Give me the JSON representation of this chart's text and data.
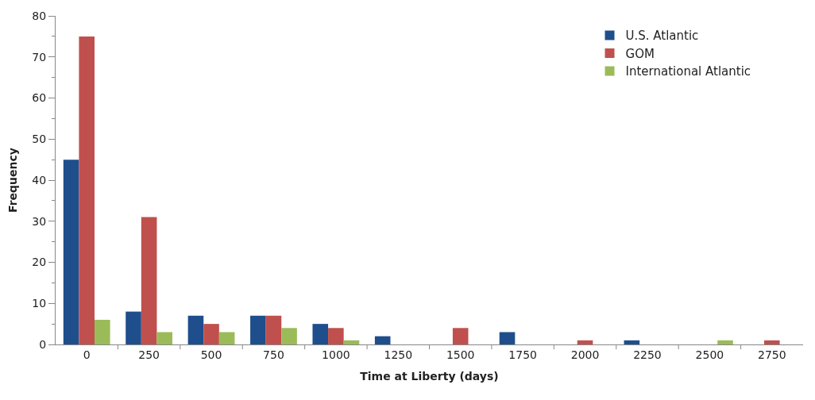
{
  "chart_data": {
    "type": "bar",
    "xlabel": "Time at Liberty (days)",
    "ylabel": "Frequency",
    "categories": [
      "0",
      "250",
      "500",
      "750",
      "1000",
      "1250",
      "1500",
      "1750",
      "2000",
      "2250",
      "2500",
      "2750"
    ],
    "series": [
      {
        "name": "U.S. Atlantic",
        "color": "#1f4e8c",
        "values": [
          45,
          8,
          7,
          7,
          5,
          2,
          0,
          3,
          0,
          1,
          0,
          0
        ]
      },
      {
        "name": "GOM",
        "color": "#c0504d",
        "values": [
          75,
          31,
          5,
          7,
          4,
          0,
          4,
          0,
          1,
          0,
          0,
          1
        ]
      },
      {
        "name": "International Atlantic",
        "color": "#9bbb59",
        "values": [
          6,
          3,
          3,
          4,
          1,
          0,
          0,
          0,
          0,
          0,
          1,
          0
        ]
      }
    ],
    "ylim": [
      0,
      80
    ],
    "yticks": [
      0,
      10,
      20,
      30,
      40,
      50,
      60,
      70,
      80
    ],
    "legend": "top right"
  }
}
